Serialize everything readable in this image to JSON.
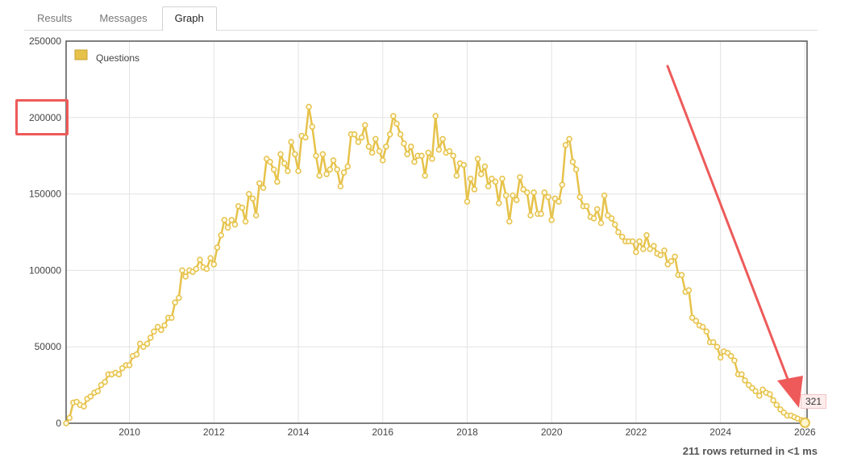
{
  "tabs": [
    {
      "label": "Results",
      "active": false
    },
    {
      "label": "Messages",
      "active": false
    },
    {
      "label": "Graph",
      "active": true
    }
  ],
  "status": {
    "rows_returned": "211 rows returned in <1 ms"
  },
  "tooltip": {
    "value": "321"
  },
  "annotations": {
    "highlight_color": "#ee5a5a",
    "highlighted_tick": "200000"
  },
  "chart_data": {
    "type": "line",
    "title": "",
    "xlabel": "",
    "ylabel": "",
    "xlim": [
      2008.5,
      2026.05
    ],
    "ylim": [
      0,
      250000
    ],
    "grid": true,
    "legend_position": "top-left",
    "x_ticks": [
      2010,
      2012,
      2014,
      2016,
      2018,
      2020,
      2022,
      2024,
      2026
    ],
    "x_tick_labels": [
      "2010",
      "2012",
      "2014",
      "2016",
      "2018",
      "2020",
      "2022",
      "2024",
      "2026"
    ],
    "y_ticks": [
      0,
      50000,
      100000,
      150000,
      200000,
      250000
    ],
    "y_tick_labels": [
      "0",
      "50000",
      "100000",
      "150000",
      "200000",
      "250000"
    ],
    "series": [
      {
        "name": "Questions",
        "color": "#e6c24a",
        "points": [
          [
            2008.5,
            0
          ],
          [
            2008.58,
            3500
          ],
          [
            2008.67,
            13500
          ],
          [
            2008.75,
            14000
          ],
          [
            2008.83,
            12000
          ],
          [
            2008.92,
            11000
          ],
          [
            2009.0,
            16000
          ],
          [
            2009.08,
            17500
          ],
          [
            2009.17,
            20000
          ],
          [
            2009.25,
            21000
          ],
          [
            2009.33,
            25000
          ],
          [
            2009.42,
            27000
          ],
          [
            2009.5,
            32000
          ],
          [
            2009.58,
            32000
          ],
          [
            2009.67,
            33000
          ],
          [
            2009.75,
            32000
          ],
          [
            2009.83,
            36000
          ],
          [
            2009.92,
            38000
          ],
          [
            2010.0,
            38000
          ],
          [
            2010.08,
            44000
          ],
          [
            2010.17,
            45000
          ],
          [
            2010.25,
            52000
          ],
          [
            2010.33,
            50000
          ],
          [
            2010.42,
            52000
          ],
          [
            2010.5,
            56000
          ],
          [
            2010.58,
            60000
          ],
          [
            2010.67,
            63000
          ],
          [
            2010.75,
            61000
          ],
          [
            2010.83,
            64000
          ],
          [
            2010.92,
            69000
          ],
          [
            2011.0,
            69000
          ],
          [
            2011.08,
            79000
          ],
          [
            2011.17,
            82000
          ],
          [
            2011.25,
            100000
          ],
          [
            2011.33,
            96000
          ],
          [
            2011.42,
            100000
          ],
          [
            2011.5,
            99000
          ],
          [
            2011.58,
            101000
          ],
          [
            2011.67,
            107000
          ],
          [
            2011.75,
            102000
          ],
          [
            2011.83,
            101000
          ],
          [
            2011.92,
            108000
          ],
          [
            2012.0,
            104000
          ],
          [
            2012.08,
            115000
          ],
          [
            2012.17,
            123000
          ],
          [
            2012.25,
            133000
          ],
          [
            2012.33,
            128000
          ],
          [
            2012.42,
            133000
          ],
          [
            2012.5,
            130000
          ],
          [
            2012.58,
            142000
          ],
          [
            2012.67,
            141000
          ],
          [
            2012.75,
            132000
          ],
          [
            2012.83,
            150000
          ],
          [
            2012.92,
            147000
          ],
          [
            2013.0,
            136000
          ],
          [
            2013.08,
            157000
          ],
          [
            2013.17,
            154000
          ],
          [
            2013.25,
            173000
          ],
          [
            2013.33,
            171000
          ],
          [
            2013.42,
            166000
          ],
          [
            2013.5,
            158000
          ],
          [
            2013.58,
            176000
          ],
          [
            2013.67,
            170000
          ],
          [
            2013.75,
            165000
          ],
          [
            2013.83,
            184000
          ],
          [
            2013.92,
            176000
          ],
          [
            2014.0,
            165000
          ],
          [
            2014.08,
            188000
          ],
          [
            2014.17,
            187000
          ],
          [
            2014.25,
            207000
          ],
          [
            2014.33,
            194000
          ],
          [
            2014.42,
            175000
          ],
          [
            2014.5,
            162000
          ],
          [
            2014.58,
            176000
          ],
          [
            2014.67,
            163000
          ],
          [
            2014.75,
            166000
          ],
          [
            2014.83,
            172000
          ],
          [
            2014.92,
            166000
          ],
          [
            2015.0,
            155000
          ],
          [
            2015.08,
            164000
          ],
          [
            2015.17,
            168000
          ],
          [
            2015.25,
            189000
          ],
          [
            2015.33,
            189000
          ],
          [
            2015.42,
            184000
          ],
          [
            2015.5,
            187000
          ],
          [
            2015.58,
            195000
          ],
          [
            2015.67,
            181000
          ],
          [
            2015.75,
            177000
          ],
          [
            2015.83,
            186000
          ],
          [
            2015.92,
            178000
          ],
          [
            2016.0,
            172000
          ],
          [
            2016.08,
            181000
          ],
          [
            2016.17,
            189000
          ],
          [
            2016.25,
            201000
          ],
          [
            2016.33,
            196000
          ],
          [
            2016.42,
            189000
          ],
          [
            2016.5,
            183000
          ],
          [
            2016.58,
            176000
          ],
          [
            2016.67,
            181000
          ],
          [
            2016.75,
            171000
          ],
          [
            2016.83,
            175000
          ],
          [
            2016.92,
            175000
          ],
          [
            2017.0,
            162000
          ],
          [
            2017.08,
            177000
          ],
          [
            2017.17,
            173000
          ],
          [
            2017.25,
            201000
          ],
          [
            2017.33,
            179000
          ],
          [
            2017.42,
            186000
          ],
          [
            2017.5,
            177000
          ],
          [
            2017.58,
            178000
          ],
          [
            2017.67,
            175000
          ],
          [
            2017.75,
            162000
          ],
          [
            2017.83,
            170000
          ],
          [
            2017.92,
            169000
          ],
          [
            2018.0,
            145000
          ],
          [
            2018.08,
            160000
          ],
          [
            2018.17,
            153000
          ],
          [
            2018.25,
            173000
          ],
          [
            2018.33,
            163000
          ],
          [
            2018.42,
            168000
          ],
          [
            2018.5,
            155000
          ],
          [
            2018.58,
            160000
          ],
          [
            2018.67,
            158000
          ],
          [
            2018.75,
            144000
          ],
          [
            2018.83,
            160000
          ],
          [
            2018.92,
            149000
          ],
          [
            2019.0,
            132000
          ],
          [
            2019.08,
            149000
          ],
          [
            2019.17,
            146000
          ],
          [
            2019.25,
            161000
          ],
          [
            2019.33,
            153000
          ],
          [
            2019.42,
            151000
          ],
          [
            2019.5,
            136000
          ],
          [
            2019.58,
            151000
          ],
          [
            2019.67,
            137000
          ],
          [
            2019.75,
            137000
          ],
          [
            2019.83,
            151000
          ],
          [
            2019.92,
            148000
          ],
          [
            2020.0,
            133000
          ],
          [
            2020.08,
            147000
          ],
          [
            2020.17,
            145000
          ],
          [
            2020.25,
            156000
          ],
          [
            2020.33,
            182000
          ],
          [
            2020.42,
            186000
          ],
          [
            2020.5,
            171000
          ],
          [
            2020.58,
            166000
          ],
          [
            2020.67,
            148000
          ],
          [
            2020.75,
            142000
          ],
          [
            2020.83,
            142000
          ],
          [
            2020.92,
            135000
          ],
          [
            2021.0,
            134000
          ],
          [
            2021.08,
            140000
          ],
          [
            2021.17,
            131000
          ],
          [
            2021.25,
            149000
          ],
          [
            2021.33,
            136000
          ],
          [
            2021.42,
            134000
          ],
          [
            2021.5,
            130000
          ],
          [
            2021.58,
            125000
          ],
          [
            2021.67,
            122000
          ],
          [
            2021.75,
            119000
          ],
          [
            2021.83,
            119000
          ],
          [
            2021.92,
            119000
          ],
          [
            2022.0,
            112000
          ],
          [
            2022.08,
            119000
          ],
          [
            2022.17,
            114000
          ],
          [
            2022.25,
            123000
          ],
          [
            2022.33,
            114000
          ],
          [
            2022.42,
            116000
          ],
          [
            2022.5,
            111000
          ],
          [
            2022.58,
            110000
          ],
          [
            2022.67,
            113000
          ],
          [
            2022.75,
            104000
          ],
          [
            2022.83,
            106000
          ],
          [
            2022.92,
            109000
          ],
          [
            2023.0,
            97000
          ],
          [
            2023.08,
            97000
          ],
          [
            2023.17,
            86000
          ],
          [
            2023.25,
            87000
          ],
          [
            2023.33,
            69000
          ],
          [
            2023.42,
            67000
          ],
          [
            2023.5,
            64000
          ],
          [
            2023.58,
            63000
          ],
          [
            2023.67,
            60000
          ],
          [
            2023.75,
            53000
          ],
          [
            2023.83,
            53000
          ],
          [
            2023.92,
            50000
          ],
          [
            2024.0,
            43000
          ],
          [
            2024.08,
            47000
          ],
          [
            2024.17,
            46000
          ],
          [
            2024.25,
            44000
          ],
          [
            2024.33,
            41000
          ],
          [
            2024.42,
            32000
          ],
          [
            2024.5,
            32000
          ],
          [
            2024.58,
            28000
          ],
          [
            2024.67,
            25000
          ],
          [
            2024.75,
            23000
          ],
          [
            2024.83,
            21000
          ],
          [
            2024.92,
            18000
          ],
          [
            2025.0,
            22000
          ],
          [
            2025.08,
            20000
          ],
          [
            2025.17,
            19000
          ],
          [
            2025.25,
            15000
          ],
          [
            2025.33,
            12000
          ],
          [
            2025.42,
            9000
          ],
          [
            2025.5,
            7000
          ],
          [
            2025.58,
            5000
          ],
          [
            2025.67,
            5000
          ],
          [
            2025.75,
            4000
          ],
          [
            2025.83,
            3000
          ],
          [
            2025.92,
            2000
          ],
          [
            2026.0,
            321
          ]
        ]
      }
    ]
  }
}
